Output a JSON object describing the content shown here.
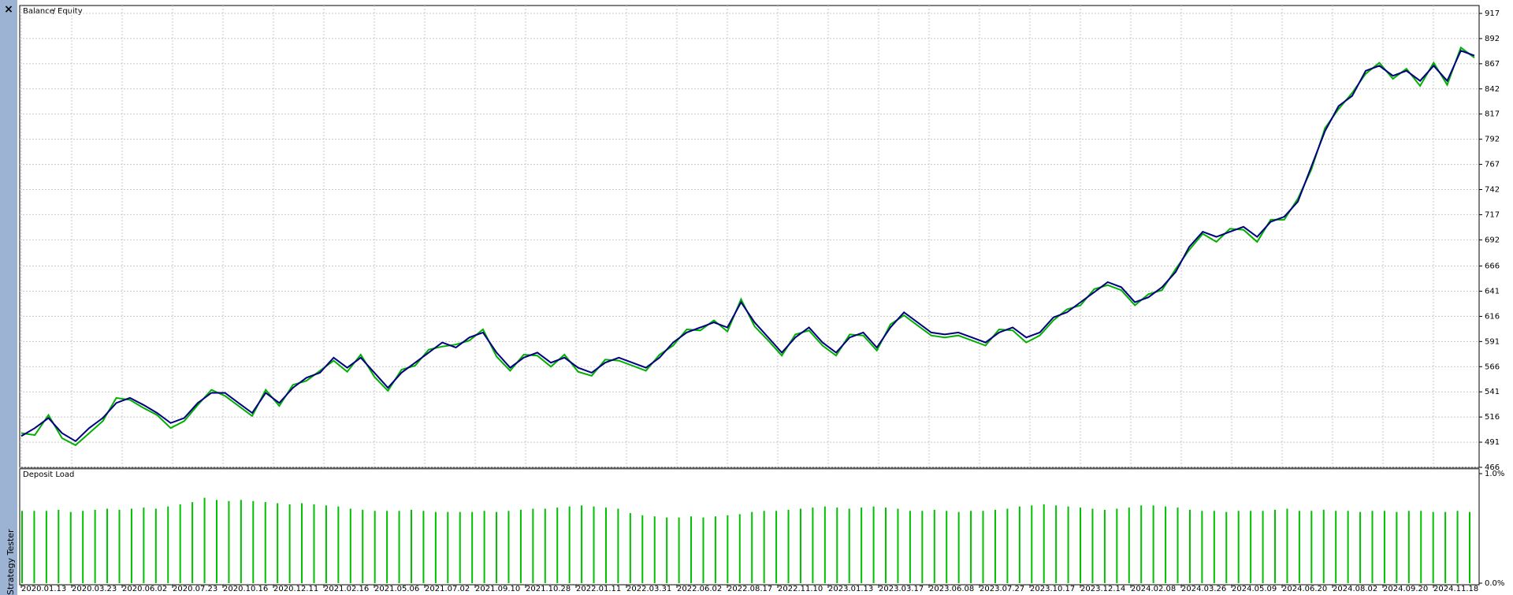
{
  "window": {
    "close": "×",
    "side_title": "Strategy Tester"
  },
  "chart_data": [
    {
      "type": "line",
      "legend_separator": "/",
      "series": [
        {
          "name": "Balance",
          "color": "#000080",
          "values": [
            497,
            505,
            515,
            500,
            492,
            505,
            515,
            530,
            535,
            528,
            520,
            510,
            515,
            530,
            540,
            540,
            530,
            520,
            540,
            530,
            545,
            555,
            560,
            575,
            565,
            575,
            560,
            545,
            560,
            570,
            580,
            590,
            585,
            595,
            600,
            580,
            565,
            575,
            580,
            570,
            575,
            565,
            560,
            570,
            575,
            570,
            565,
            575,
            590,
            600,
            605,
            610,
            605,
            630,
            610,
            595,
            580,
            595,
            605,
            590,
            580,
            595,
            600,
            585,
            605,
            620,
            610,
            600,
            598,
            600,
            595,
            590,
            600,
            605,
            595,
            600,
            615,
            620,
            630,
            640,
            650,
            645,
            630,
            635,
            645,
            660,
            685,
            700,
            695,
            700,
            705,
            695,
            710,
            715,
            730,
            765,
            800,
            825,
            835,
            860,
            865,
            855,
            860,
            850,
            865,
            850,
            880,
            875
          ]
        },
        {
          "name": "Equity",
          "color": "#00b000",
          "values": [
            500,
            498,
            518,
            495,
            488,
            500,
            512,
            535,
            533,
            525,
            518,
            505,
            512,
            528,
            543,
            537,
            527,
            517,
            543,
            527,
            548,
            552,
            562,
            572,
            561,
            578,
            556,
            542,
            563,
            567,
            583,
            586,
            588,
            592,
            603,
            576,
            562,
            578,
            577,
            566,
            578,
            561,
            557,
            573,
            572,
            567,
            562,
            578,
            587,
            603,
            602,
            612,
            601,
            633,
            606,
            592,
            577,
            598,
            602,
            587,
            577,
            598,
            597,
            582,
            608,
            617,
            607,
            597,
            595,
            597,
            592,
            587,
            603,
            602,
            590,
            597,
            612,
            623,
            627,
            643,
            647,
            642,
            627,
            638,
            642,
            663,
            682,
            698,
            690,
            703,
            702,
            690,
            712,
            712,
            733,
            762,
            803,
            822,
            838,
            857,
            868,
            852,
            862,
            845,
            868,
            846,
            883,
            873
          ]
        }
      ],
      "ylim": [
        466,
        917
      ],
      "yticks": [
        466,
        491,
        516,
        541,
        566,
        591,
        616,
        641,
        666,
        692,
        717,
        742,
        767,
        792,
        817,
        842,
        867,
        892,
        917
      ],
      "grid": true,
      "x_labels": [
        "2020.01.13",
        "2020.03.23",
        "2020.06.02",
        "2020.07.23",
        "2020.10.16",
        "2020.12.11",
        "2021.02.16",
        "2021.05.06",
        "2021.07.02",
        "2021.09.10",
        "2021.10.28",
        "2022.01.11",
        "2022.03.31",
        "2022.06.02",
        "2022.08.17",
        "2022.11.10",
        "2023.01.13",
        "2023.03.17",
        "2023.06.08",
        "2023.07.27",
        "2023.10.17",
        "2023.12.14",
        "2024.02.08",
        "2024.03.26",
        "2024.05.09",
        "2024.06.20",
        "2024.08.02",
        "2024.09.20",
        "2024.11.18"
      ]
    },
    {
      "type": "bar",
      "title": "Deposit Load",
      "color": "#00c000",
      "values": [
        0.66,
        0.66,
        0.66,
        0.67,
        0.65,
        0.66,
        0.67,
        0.68,
        0.67,
        0.68,
        0.69,
        0.68,
        0.7,
        0.72,
        0.74,
        0.78,
        0.76,
        0.75,
        0.76,
        0.75,
        0.74,
        0.73,
        0.72,
        0.73,
        0.72,
        0.71,
        0.7,
        0.68,
        0.67,
        0.66,
        0.66,
        0.66,
        0.67,
        0.66,
        0.65,
        0.65,
        0.65,
        0.65,
        0.66,
        0.65,
        0.66,
        0.67,
        0.68,
        0.68,
        0.69,
        0.7,
        0.71,
        0.7,
        0.69,
        0.68,
        0.64,
        0.62,
        0.61,
        0.6,
        0.6,
        0.61,
        0.6,
        0.61,
        0.62,
        0.63,
        0.65,
        0.66,
        0.66,
        0.67,
        0.68,
        0.69,
        0.7,
        0.69,
        0.68,
        0.69,
        0.7,
        0.69,
        0.68,
        0.66,
        0.66,
        0.67,
        0.66,
        0.65,
        0.66,
        0.66,
        0.67,
        0.68,
        0.7,
        0.71,
        0.72,
        0.71,
        0.7,
        0.69,
        0.68,
        0.67,
        0.68,
        0.69,
        0.71,
        0.71,
        0.7,
        0.69,
        0.67,
        0.66,
        0.66,
        0.65,
        0.66,
        0.66,
        0.66,
        0.67,
        0.68,
        0.66,
        0.66,
        0.67,
        0.66,
        0.66,
        0.65,
        0.66,
        0.66,
        0.65,
        0.66,
        0.66,
        0.65,
        0.65,
        0.66,
        0.65
      ],
      "ylim": [
        0,
        1
      ],
      "yticks": [
        {
          "value": 0,
          "label": "0.0%"
        },
        {
          "value": 1,
          "label": "1.0%"
        }
      ]
    }
  ]
}
